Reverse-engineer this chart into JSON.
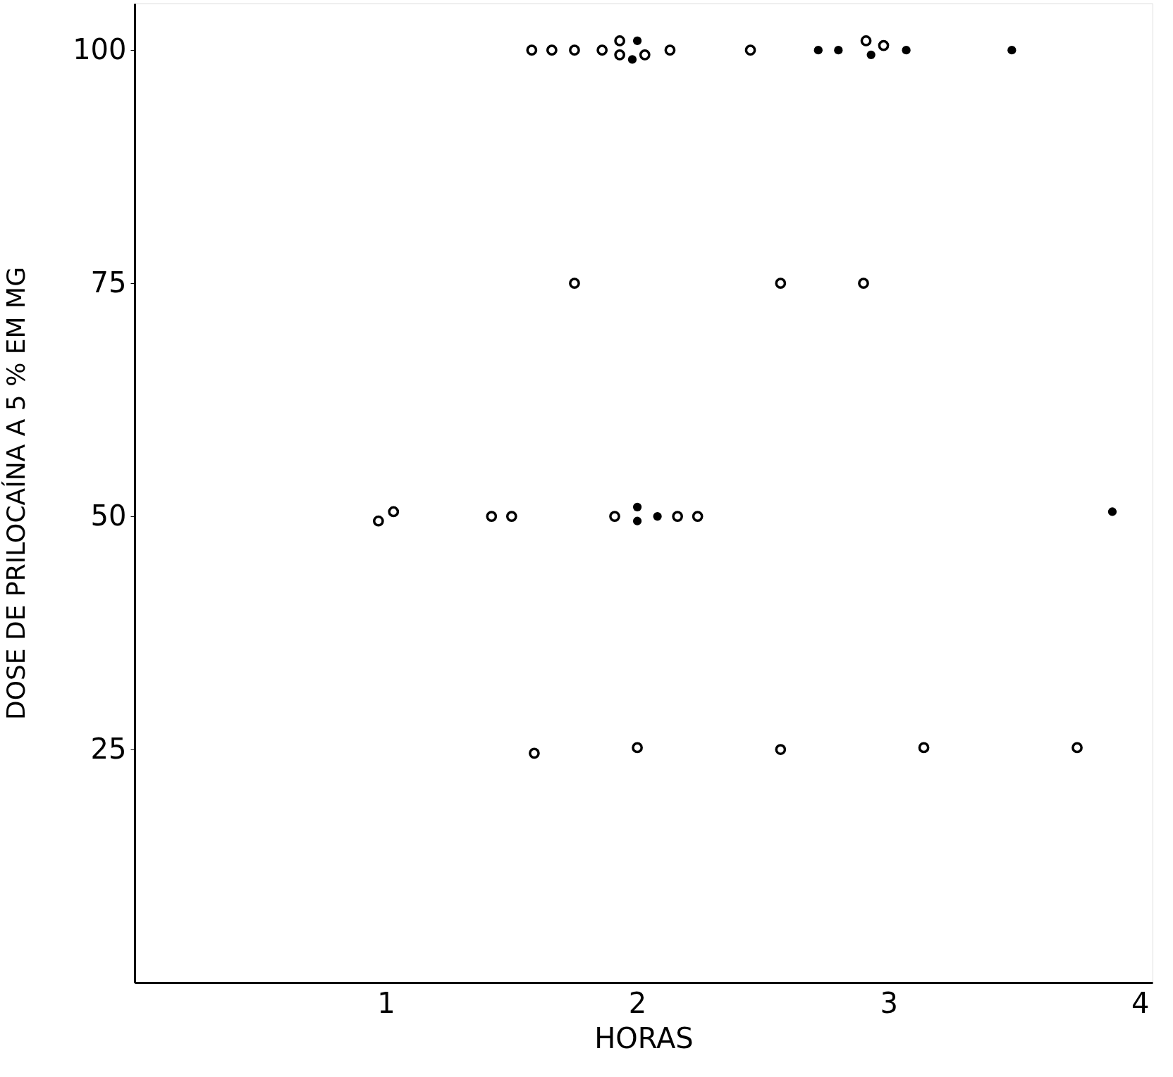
{
  "chart_data": {
    "type": "scatter",
    "xlabel": "HORAS",
    "ylabel": "DOSE DE PRILOCAÍNA A 5 % EM MG",
    "series": [
      {
        "color": "#000000",
        "marker": "circle_open",
        "x": [
          1.58,
          1.66,
          1.75,
          1.86,
          1.93,
          1.93,
          2.03,
          2.13,
          2.45,
          2.91,
          2.98,
          1.75,
          2.57,
          2.9,
          0.97,
          1.03,
          1.42,
          1.5,
          1.91,
          2.16,
          2.24,
          1.59,
          2.0,
          2.57,
          3.14,
          3.75
        ],
        "values": [
          100,
          100,
          100,
          100,
          101,
          99.5,
          99.5,
          100,
          100,
          101,
          100.5,
          75,
          75,
          75,
          49.5,
          50.5,
          50,
          50,
          50,
          50,
          50,
          24.6,
          25.2,
          25,
          25.2,
          25.2
        ]
      },
      {
        "color": "#000000",
        "marker": "circle",
        "x": [
          2.0,
          1.98,
          2.72,
          2.8,
          2.93,
          3.07,
          3.49,
          2.0,
          2.0,
          2.08,
          3.89
        ],
        "values": [
          101,
          99,
          100,
          100,
          99.5,
          100,
          100,
          51,
          49.5,
          50,
          50.5
        ]
      }
    ],
    "xlim": [
      0,
      4.05
    ],
    "ylim": [
      0,
      105
    ],
    "xticks": [
      1,
      2,
      3,
      4
    ],
    "yticks": [
      25,
      50,
      75,
      100
    ],
    "grid": false
  }
}
